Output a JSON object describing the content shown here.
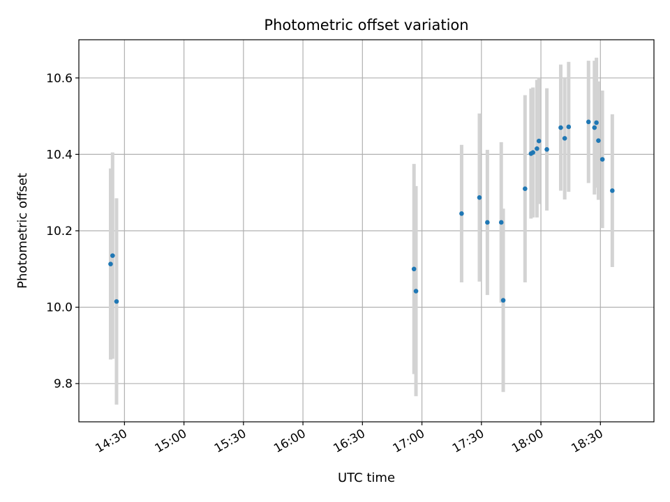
{
  "chart_data": {
    "type": "scatter",
    "title": "Photometric offset variation",
    "xlabel": "UTC time",
    "ylabel": "Photometric offset",
    "x_tick_labels": [
      "14:30",
      "15:00",
      "15:30",
      "16:00",
      "16:30",
      "17:00",
      "17:30",
      "18:00",
      "18:30"
    ],
    "y_tick_labels": [
      "9.8",
      "10.0",
      "10.2",
      "10.4",
      "10.6"
    ],
    "x_ticks": [
      "14:30",
      "15:00",
      "15:30",
      "16:00",
      "16:30",
      "17:00",
      "17:30",
      "18:00",
      "18:30"
    ],
    "y_ticks": [
      9.8,
      10.0,
      10.2,
      10.4,
      10.6
    ],
    "xlim": [
      "14:07",
      "18:57"
    ],
    "ylim": [
      9.7,
      10.7
    ],
    "grid": true,
    "colors": {
      "marker": "#1f77b4",
      "errorbar": "#d3d3d3",
      "grid": "#b0b0b0"
    },
    "points": [
      {
        "x": "14:23",
        "y": 10.113,
        "yerr": 0.25
      },
      {
        "x": "14:24",
        "y": 10.135,
        "yerr": 0.27
      },
      {
        "x": "14:26",
        "y": 10.015,
        "yerr": 0.27
      },
      {
        "x": "16:56",
        "y": 10.1,
        "yerr": 0.275
      },
      {
        "x": "16:57",
        "y": 10.042,
        "yerr": 0.275
      },
      {
        "x": "17:20",
        "y": 10.245,
        "yerr": 0.18
      },
      {
        "x": "17:29",
        "y": 10.287,
        "yerr": 0.22
      },
      {
        "x": "17:33",
        "y": 10.222,
        "yerr": 0.19
      },
      {
        "x": "17:40",
        "y": 10.222,
        "yerr": 0.21
      },
      {
        "x": "17:41",
        "y": 10.018,
        "yerr": 0.24
      },
      {
        "x": "17:52",
        "y": 10.31,
        "yerr": 0.245
      },
      {
        "x": "17:55",
        "y": 10.402,
        "yerr": 0.17
      },
      {
        "x": "17:56",
        "y": 10.405,
        "yerr": 0.17
      },
      {
        "x": "17:58",
        "y": 10.415,
        "yerr": 0.18
      },
      {
        "x": "17:59",
        "y": 10.435,
        "yerr": 0.165
      },
      {
        "x": "18:03",
        "y": 10.413,
        "yerr": 0.16
      },
      {
        "x": "18:10",
        "y": 10.47,
        "yerr": 0.165
      },
      {
        "x": "18:12",
        "y": 10.442,
        "yerr": 0.16
      },
      {
        "x": "18:14",
        "y": 10.472,
        "yerr": 0.17
      },
      {
        "x": "18:24",
        "y": 10.485,
        "yerr": 0.16
      },
      {
        "x": "18:27",
        "y": 10.47,
        "yerr": 0.175
      },
      {
        "x": "18:28",
        "y": 10.483,
        "yerr": 0.17
      },
      {
        "x": "18:29",
        "y": 10.436,
        "yerr": 0.155
      },
      {
        "x": "18:31",
        "y": 10.387,
        "yerr": 0.18
      },
      {
        "x": "18:36",
        "y": 10.305,
        "yerr": 0.2
      }
    ]
  }
}
